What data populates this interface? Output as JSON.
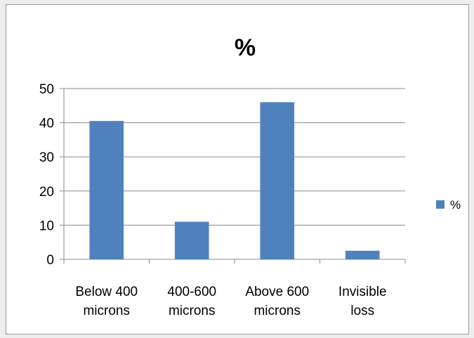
{
  "chart_data": {
    "type": "bar",
    "title": "%",
    "categories": [
      [
        "Below 400",
        "microns"
      ],
      [
        "400-600",
        "microns"
      ],
      [
        "Above 600",
        "microns"
      ],
      [
        "Invisible",
        "loss"
      ]
    ],
    "series": [
      {
        "name": "%",
        "values": [
          40.5,
          11,
          46,
          2.5
        ],
        "color": "#4f81bd"
      }
    ],
    "ylim": [
      0,
      50
    ],
    "yticks": [
      0,
      10,
      20,
      30,
      40,
      50
    ],
    "grid": true,
    "legend": "right",
    "xlabel": "",
    "ylabel": ""
  }
}
